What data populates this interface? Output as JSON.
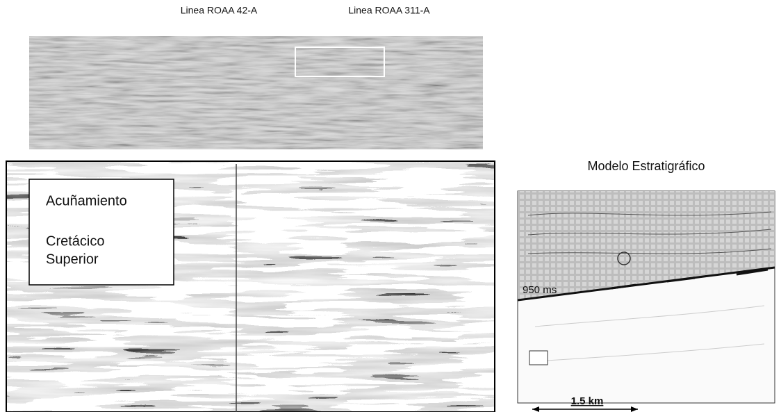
{
  "top_panel": {
    "labels": [
      "Linea ROAA 42-A",
      "Linea ROAA 311-A"
    ]
  },
  "seismic_section": {
    "box_lines": [
      "Acuñamiento",
      "Cretácico",
      "Superior"
    ]
  },
  "model": {
    "title": "Modelo Estratigráfico",
    "time_label": "950 ms",
    "scale": "1.5 km"
  }
}
